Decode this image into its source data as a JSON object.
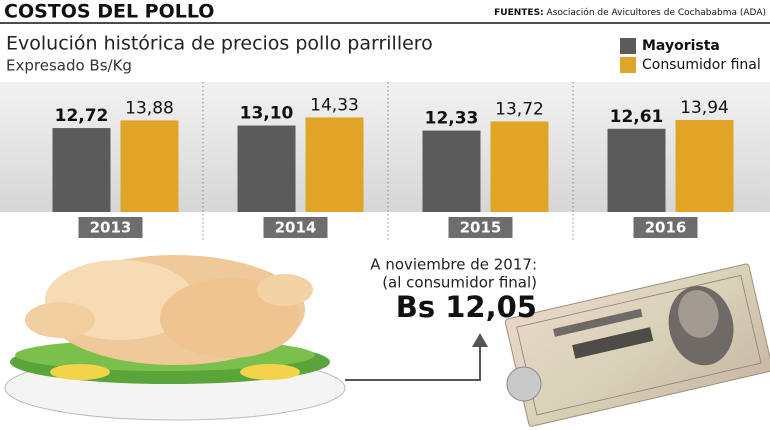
{
  "header": {
    "title": "COSTOS DEL POLLO",
    "source_label": "FUENTES:",
    "source": "Asociación de Avicultores de Cochababma (ADA)"
  },
  "chart_data": {
    "type": "bar",
    "title": "Evolución histórica de precios pollo parrillero",
    "subtitle": "Expresado Bs/Kg",
    "categories": [
      "2013",
      "2014",
      "2015",
      "2016"
    ],
    "series": [
      {
        "name": "Mayorista",
        "color": "#5b5b5b",
        "values": [
          12.72,
          13.1,
          12.33,
          12.61
        ],
        "value_labels": [
          "12,72",
          "13,10",
          "12,33",
          "12,61"
        ]
      },
      {
        "name": "Consumidor final",
        "color": "#e0a526",
        "values": [
          13.88,
          14.33,
          13.72,
          13.94
        ],
        "value_labels": [
          "13,88",
          "14,33",
          "13,72",
          "13,94"
        ]
      }
    ]
  },
  "annotation": {
    "lines": [
      "A noviembre de 2017:",
      "(al consumidor final)"
    ],
    "highlight": "Bs 12,05"
  }
}
